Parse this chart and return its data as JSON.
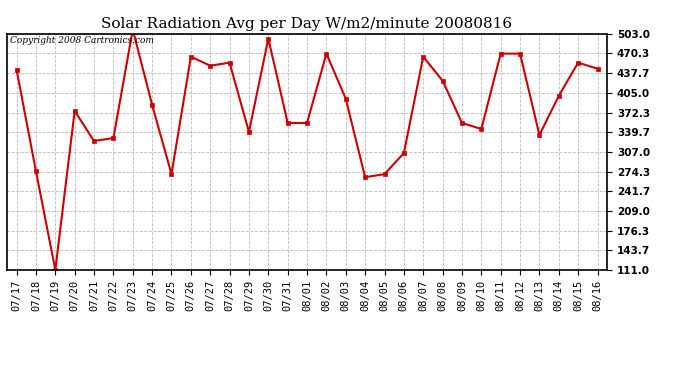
{
  "title": "Solar Radiation Avg per Day W/m2/minute 20080816",
  "copyright": "Copyright 2008 Cartronics.com",
  "dates": [
    "07/17",
    "07/18",
    "07/19",
    "07/20",
    "07/21",
    "07/22",
    "07/23",
    "07/24",
    "07/25",
    "07/26",
    "07/27",
    "07/28",
    "07/29",
    "07/30",
    "07/31",
    "08/01",
    "08/02",
    "08/03",
    "08/04",
    "08/05",
    "08/06",
    "08/07",
    "08/08",
    "08/09",
    "08/10",
    "08/11",
    "08/12",
    "08/13",
    "08/14",
    "08/15",
    "08/16"
  ],
  "values": [
    443,
    275,
    111,
    375,
    325,
    330,
    510,
    385,
    270,
    465,
    450,
    455,
    340,
    495,
    355,
    355,
    470,
    395,
    265,
    270,
    305,
    465,
    425,
    355,
    345,
    470,
    470,
    335,
    400,
    455,
    445
  ],
  "ytick_labels": [
    "111.0",
    "143.7",
    "176.3",
    "209.0",
    "241.7",
    "274.3",
    "307.0",
    "339.7",
    "372.3",
    "405.0",
    "437.7",
    "470.3",
    "503.0"
  ],
  "ytick_values": [
    111.0,
    143.7,
    176.3,
    209.0,
    241.7,
    274.3,
    307.0,
    339.7,
    372.3,
    405.0,
    437.7,
    470.3,
    503.0
  ],
  "ymin": 111.0,
  "ymax": 503.0,
  "line_color": "#cc0000",
  "marker_color": "#cc0000",
  "bg_color": "#ffffff",
  "grid_color": "#bbbbbb",
  "title_fontsize": 11,
  "copyright_fontsize": 6.5,
  "tick_fontsize": 7.5
}
